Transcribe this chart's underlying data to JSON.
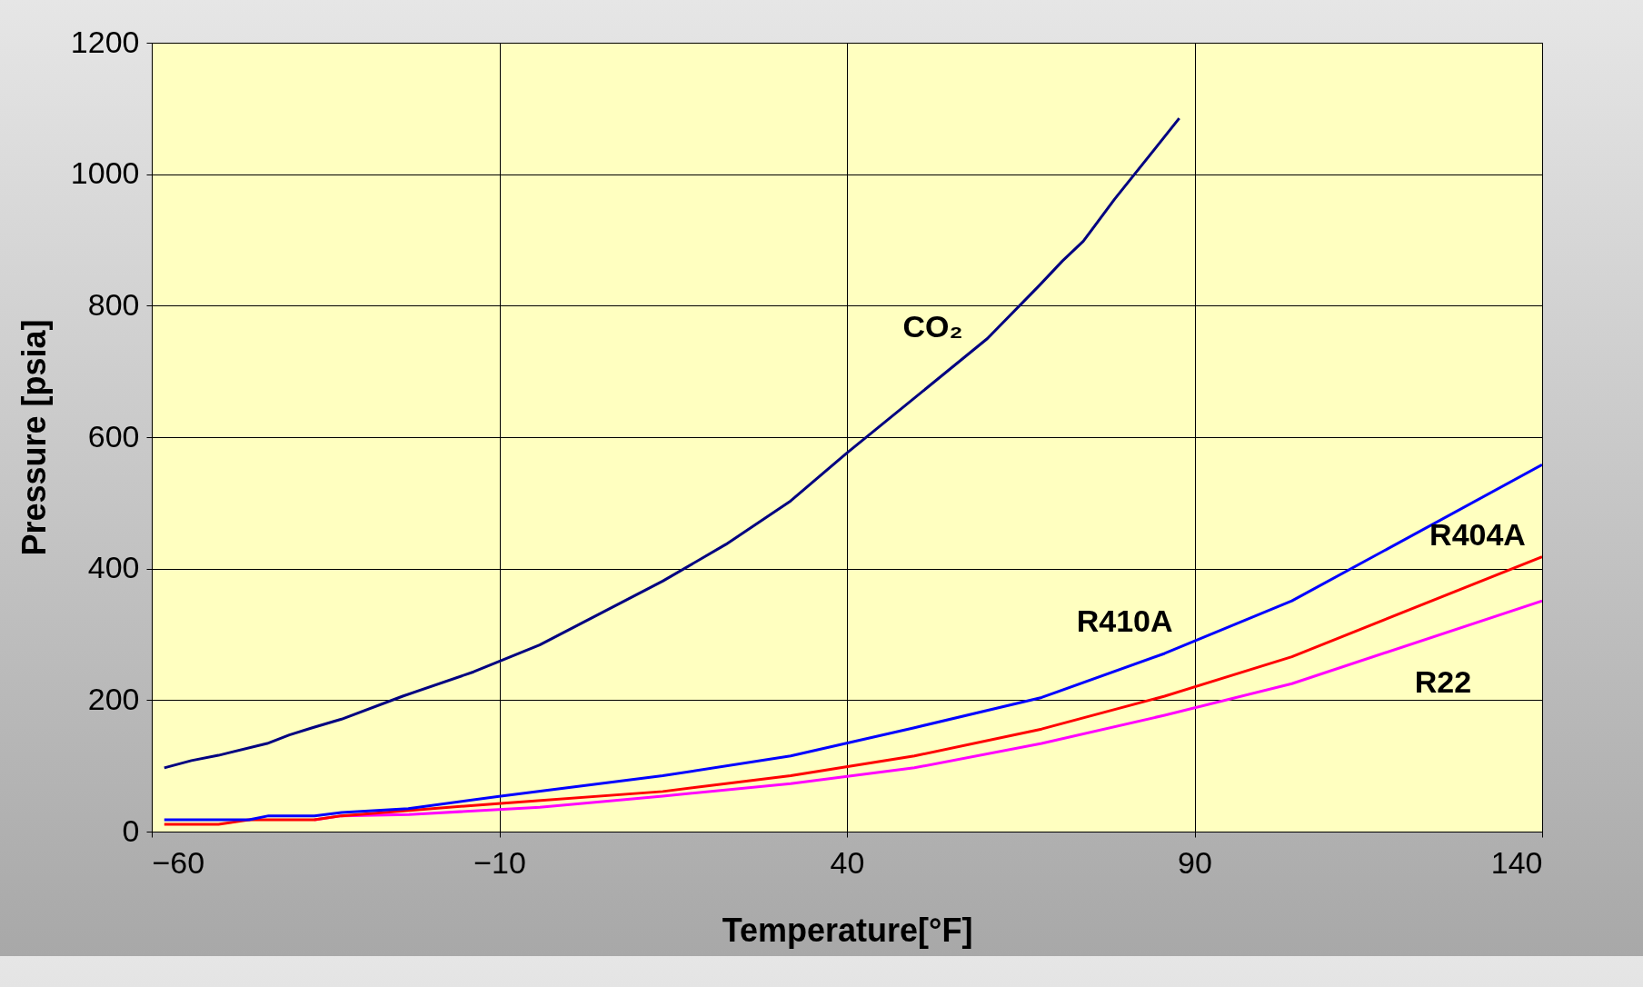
{
  "chart_data": {
    "type": "line",
    "xlabel": "Temperature[°F]",
    "ylabel": "Pressure [psia]",
    "xlim": [
      -60,
      140
    ],
    "ylim": [
      0,
      1200
    ],
    "xticks": [
      -60,
      -10,
      40,
      90,
      140
    ],
    "yticks": [
      0,
      200,
      400,
      600,
      800,
      1000,
      1200
    ],
    "grid": true,
    "legend": false,
    "series": [
      {
        "name": "CO₂",
        "color": "#000080",
        "x": [
          -58.2,
          -54.3,
          -50.4,
          -43.4,
          -40.2,
          -36.9,
          -32.7,
          -23.9,
          -13.7,
          -4.2,
          13.5,
          22.6,
          31.9,
          40,
          60.2,
          67.7,
          71,
          74,
          78.5,
          87.8
        ],
        "values": [
          97,
          108,
          116,
          134,
          147,
          158,
          171,
          206,
          243,
          284,
          381,
          437,
          503,
          576,
          750,
          831,
          868,
          898,
          962,
          1085
        ]
      },
      {
        "name": "R410A",
        "color": "#0000ff",
        "x": [
          -58.2,
          -46,
          -43.2,
          -36.6,
          -32.7,
          -23.1,
          -9.8,
          13.5,
          31.9,
          49.7,
          68,
          85.7,
          104,
          140
        ],
        "values": [
          18,
          18,
          24,
          24,
          29,
          35,
          54,
          85,
          115,
          158,
          204,
          271,
          351,
          558
        ]
      },
      {
        "name": "R404A",
        "color": "#ff0000",
        "x": [
          -58.2,
          -50.4,
          -46,
          -36.6,
          -32.7,
          -9.8,
          13.5,
          31.9,
          49.7,
          68,
          85.7,
          104,
          140
        ],
        "values": [
          11,
          11,
          18,
          18,
          24,
          43,
          61,
          85,
          115,
          156,
          206,
          266,
          418
        ]
      },
      {
        "name": "R22",
        "color": "#ff00ff",
        "x": [
          -36.6,
          -32.7,
          -23,
          -4.2,
          13.5,
          31.9,
          49.7,
          68,
          85.7,
          104,
          140
        ],
        "values": [
          18,
          24,
          26,
          37,
          54,
          73,
          97,
          134,
          177,
          225,
          351
        ]
      }
    ]
  }
}
